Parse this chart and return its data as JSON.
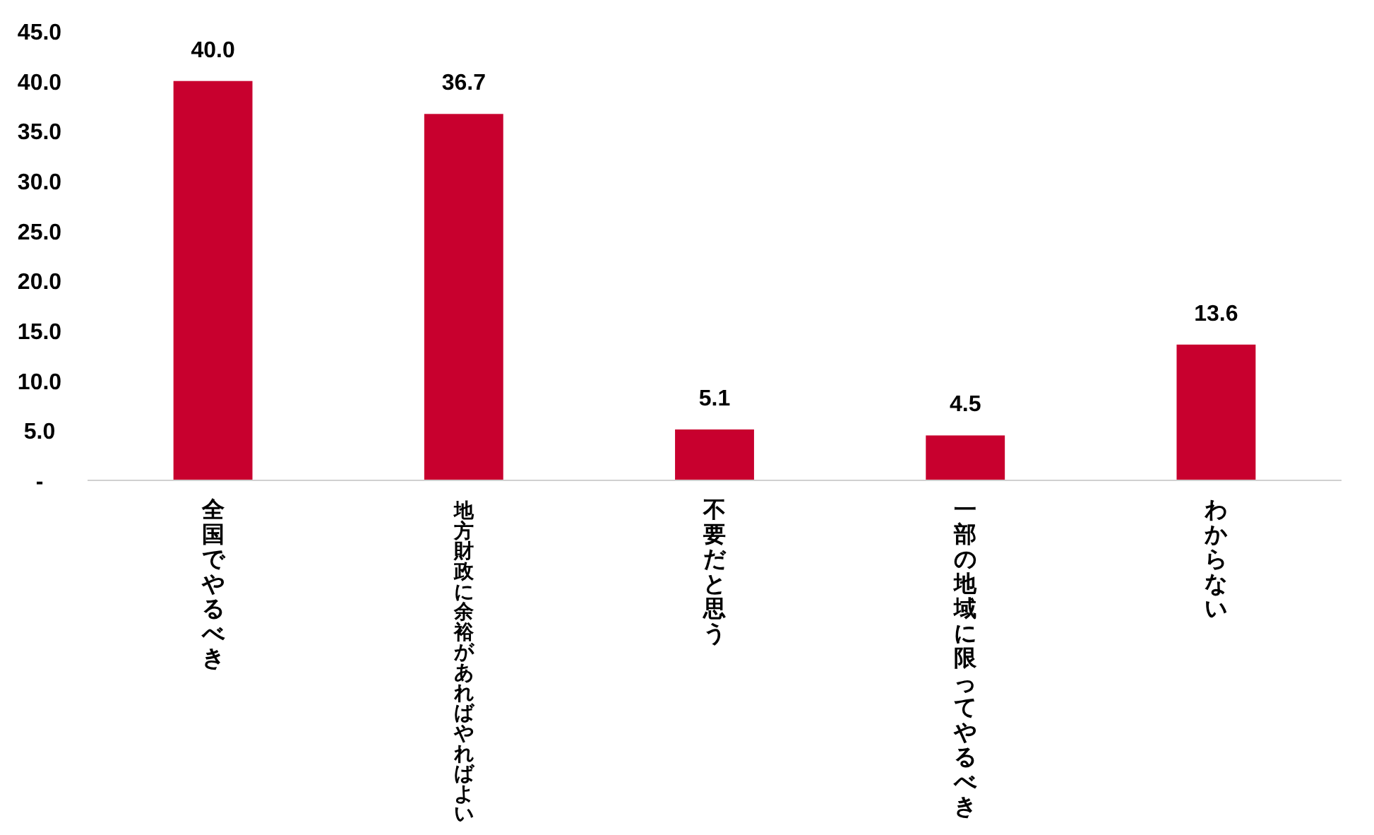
{
  "chart_data": {
    "type": "bar",
    "categories": [
      "全国でやるべき",
      "地方財政に余裕があればやればよい",
      "不要だと思う",
      "一部の地域に限ってやるべき",
      "わからない"
    ],
    "values": [
      40.0,
      36.7,
      5.1,
      4.5,
      13.6
    ],
    "value_labels": [
      "40.0",
      "36.7",
      "5.1",
      "4.5",
      "13.6"
    ],
    "color": "#c8002e",
    "ylim": [
      0,
      45
    ],
    "yticks": [
      {
        "value": 0,
        "label": "-"
      },
      {
        "value": 5,
        "label": "5.0"
      },
      {
        "value": 10,
        "label": "10.0"
      },
      {
        "value": 15,
        "label": "15.0"
      },
      {
        "value": 20,
        "label": "20.0"
      },
      {
        "value": 25,
        "label": "25.0"
      },
      {
        "value": 30,
        "label": "30.0"
      },
      {
        "value": 35,
        "label": "35.0"
      },
      {
        "value": 40,
        "label": "40.0"
      },
      {
        "value": 45,
        "label": "45.0"
      }
    ],
    "grid": false
  }
}
